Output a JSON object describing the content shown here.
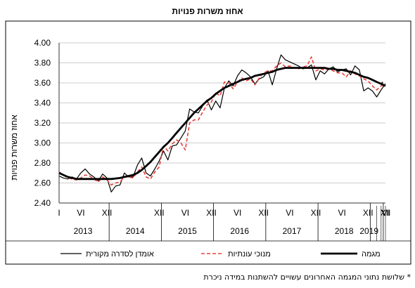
{
  "chart_data": {
    "type": "line",
    "title": "אחוז משרות פנויות",
    "ylabel": "אחוז משרות פנויות",
    "xlabel": "",
    "ylim": [
      2.4,
      4.0
    ],
    "yticks": [
      "4.00",
      "3.80",
      "3.60",
      "3.40",
      "3.20",
      "3.00",
      "2.80",
      "2.60",
      "2.40"
    ],
    "month_labels": [
      "I",
      "VI",
      "XII",
      "XII",
      "VI",
      "XII",
      "VI",
      "XII",
      "VI",
      "XII",
      "VI",
      "XII",
      "VI",
      "XII"
    ],
    "years": [
      "2013",
      "2014",
      "2015",
      "2016",
      "2017",
      "2018",
      "2019"
    ],
    "x_start": "2013-01",
    "x_end": "2019-04",
    "series": [
      {
        "name": "אומדן לסדרה מקורית",
        "color": "#000000",
        "style": "thin",
        "values": [
          2.67,
          2.65,
          2.64,
          2.66,
          2.64,
          2.7,
          2.74,
          2.69,
          2.66,
          2.62,
          2.69,
          2.65,
          2.51,
          2.57,
          2.58,
          2.7,
          2.66,
          2.66,
          2.78,
          2.85,
          2.7,
          2.67,
          2.74,
          2.82,
          2.92,
          2.83,
          2.97,
          2.98,
          3.05,
          3.12,
          3.34,
          3.31,
          3.3,
          3.37,
          3.43,
          3.33,
          3.42,
          3.35,
          3.55,
          3.62,
          3.57,
          3.67,
          3.73,
          3.7,
          3.66,
          3.59,
          3.64,
          3.66,
          3.72,
          3.58,
          3.74,
          3.88,
          3.83,
          3.81,
          3.79,
          3.77,
          3.74,
          3.75,
          3.78,
          3.63,
          3.72,
          3.69,
          3.74,
          3.76,
          3.71,
          3.73,
          3.74,
          3.68,
          3.77,
          3.73,
          3.52,
          3.55,
          3.52,
          3.46,
          3.53,
          3.59
        ]
      },
      {
        "name": "מנוכי עונתיות",
        "color": "#e8403a",
        "style": "dashed",
        "values": [
          2.71,
          2.68,
          2.65,
          2.64,
          2.63,
          2.65,
          2.68,
          2.67,
          2.64,
          2.61,
          2.66,
          2.63,
          2.58,
          2.6,
          2.61,
          2.66,
          2.66,
          2.65,
          2.71,
          2.76,
          2.66,
          2.64,
          2.71,
          2.76,
          2.97,
          2.92,
          2.99,
          3.03,
          3.0,
          2.93,
          3.2,
          3.23,
          3.23,
          3.31,
          3.38,
          3.41,
          3.5,
          3.47,
          3.61,
          3.6,
          3.54,
          3.61,
          3.65,
          3.62,
          3.64,
          3.58,
          3.65,
          3.7,
          3.72,
          3.72,
          3.77,
          3.8,
          3.76,
          3.77,
          3.75,
          3.74,
          3.76,
          3.77,
          3.86,
          3.72,
          3.74,
          3.73,
          3.74,
          3.72,
          3.7,
          3.7,
          3.66,
          3.72,
          3.69,
          3.67,
          3.64,
          3.62,
          3.57,
          3.53,
          3.57,
          3.58
        ]
      },
      {
        "name": "מגמה",
        "color": "#000000",
        "style": "thick",
        "values": [
          2.7,
          2.68,
          2.66,
          2.65,
          2.64,
          2.64,
          2.64,
          2.64,
          2.64,
          2.64,
          2.64,
          2.64,
          2.64,
          2.645,
          2.65,
          2.66,
          2.67,
          2.68,
          2.7,
          2.73,
          2.77,
          2.81,
          2.86,
          2.91,
          2.96,
          3.0,
          3.05,
          3.1,
          3.15,
          3.2,
          3.25,
          3.3,
          3.34,
          3.38,
          3.42,
          3.45,
          3.49,
          3.52,
          3.55,
          3.57,
          3.59,
          3.61,
          3.63,
          3.64,
          3.65,
          3.67,
          3.68,
          3.69,
          3.7,
          3.71,
          3.73,
          3.74,
          3.75,
          3.75,
          3.75,
          3.75,
          3.75,
          3.75,
          3.75,
          3.75,
          3.75,
          3.75,
          3.74,
          3.74,
          3.73,
          3.73,
          3.72,
          3.71,
          3.7,
          3.68,
          3.66,
          3.65,
          3.63,
          3.61,
          3.59,
          3.57
        ]
      }
    ],
    "preliminary_marker": "*",
    "legend_placement": "bottom"
  },
  "footnote": "* שלושת נתוני המגמה האחרונים עשויים להשתנות במידה ניכרת"
}
